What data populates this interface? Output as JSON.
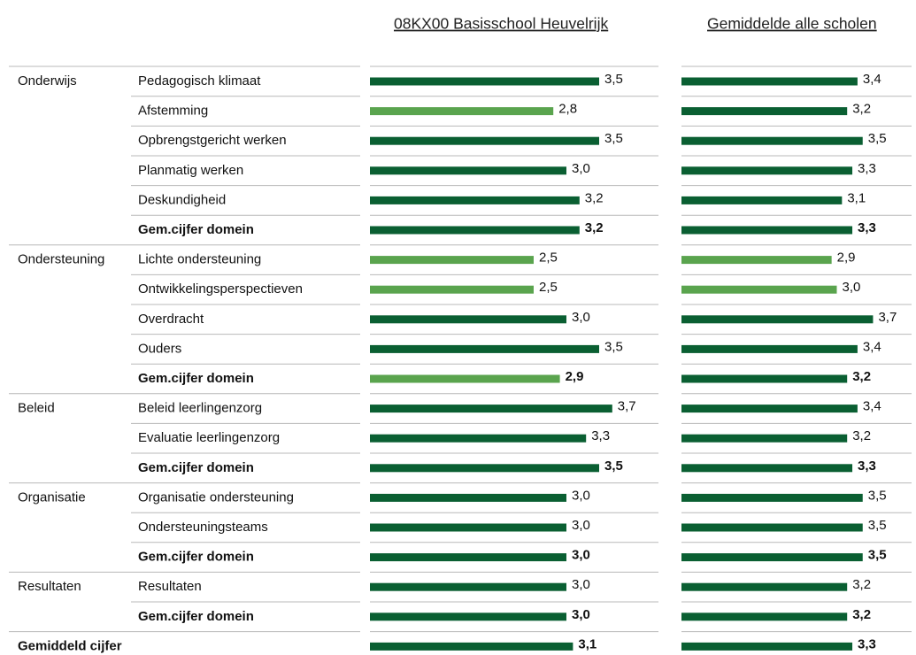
{
  "chart_data": {
    "type": "bar",
    "groups": [
      "Onderwijs",
      null,
      null,
      null,
      null,
      null,
      "Ondersteuning",
      null,
      null,
      null,
      null,
      "Beleid",
      null,
      null,
      "Organisatie",
      null,
      null,
      "Resultaten",
      null,
      "Gemiddeld cijfer"
    ],
    "categories": [
      "Pedagogisch klimaat",
      "Afstemming",
      "Opbrengstgericht werken",
      "Planmatig werken",
      "Deskundigheid",
      "Gem.cijfer domein",
      "Lichte ondersteuning",
      "Ontwikkelingsperspectieven",
      "Overdracht",
      "Ouders",
      "Gem.cijfer domein",
      "Beleid leerlingenzorg",
      "Evaluatie leerlingenzorg",
      "Gem.cijfer domein",
      "Organisatie ondersteuning",
      "Ondersteuningsteams",
      "Gem.cijfer domein",
      "Resultaten",
      "Gem.cijfer domein",
      null
    ],
    "series": [
      {
        "name": "08KX00 Basisschool Heuvelrijk",
        "values": [
          3.5,
          2.8,
          3.5,
          3.0,
          3.2,
          3.2,
          2.5,
          2.5,
          3.0,
          3.5,
          2.9,
          3.7,
          3.3,
          3.5,
          3.0,
          3.0,
          3.0,
          3.0,
          3.0,
          3.1
        ],
        "value_labels": [
          "3,5",
          "2,8",
          "3,5",
          "3,0",
          "3,2",
          "3,2",
          "2,5",
          "2,5",
          "3,0",
          "3,5",
          "2,9",
          "3,7",
          "3,3",
          "3,5",
          "3,0",
          "3,0",
          "3,0",
          "3,0",
          "3,0",
          "3,1"
        ],
        "colors": [
          "#0a5f32",
          "#5aa44e",
          "#0a5f32",
          "#0a5f32",
          "#0a5f32",
          "#0a5f32",
          "#5aa44e",
          "#5aa44e",
          "#0a5f32",
          "#0a5f32",
          "#5aa44e",
          "#0a5f32",
          "#0a5f32",
          "#0a5f32",
          "#0a5f32",
          "#0a5f32",
          "#0a5f32",
          "#0a5f32",
          "#0a5f32",
          "#0a5f32"
        ]
      },
      {
        "name": "Gemiddelde alle scholen",
        "values": [
          3.4,
          3.2,
          3.5,
          3.3,
          3.1,
          3.3,
          2.9,
          3.0,
          3.7,
          3.4,
          3.2,
          3.4,
          3.2,
          3.3,
          3.5,
          3.5,
          3.5,
          3.2,
          3.2,
          3.3
        ],
        "value_labels": [
          "3,4",
          "3,2",
          "3,5",
          "3,3",
          "3,1",
          "3,3",
          "2,9",
          "3,0",
          "3,7",
          "3,4",
          "3,2",
          "3,4",
          "3,2",
          "3,3",
          "3,5",
          "3,5",
          "3,5",
          "3,2",
          "3,2",
          "3,3"
        ],
        "colors": [
          "#0a5f32",
          "#0a5f32",
          "#0a5f32",
          "#0a5f32",
          "#0a5f32",
          "#0a5f32",
          "#5aa44e",
          "#5aa44e",
          "#0a5f32",
          "#0a5f32",
          "#0a5f32",
          "#0a5f32",
          "#0a5f32",
          "#0a5f32",
          "#0a5f32",
          "#0a5f32",
          "#0a5f32",
          "#0a5f32",
          "#0a5f32",
          "#0a5f32"
        ]
      }
    ]
  }
}
